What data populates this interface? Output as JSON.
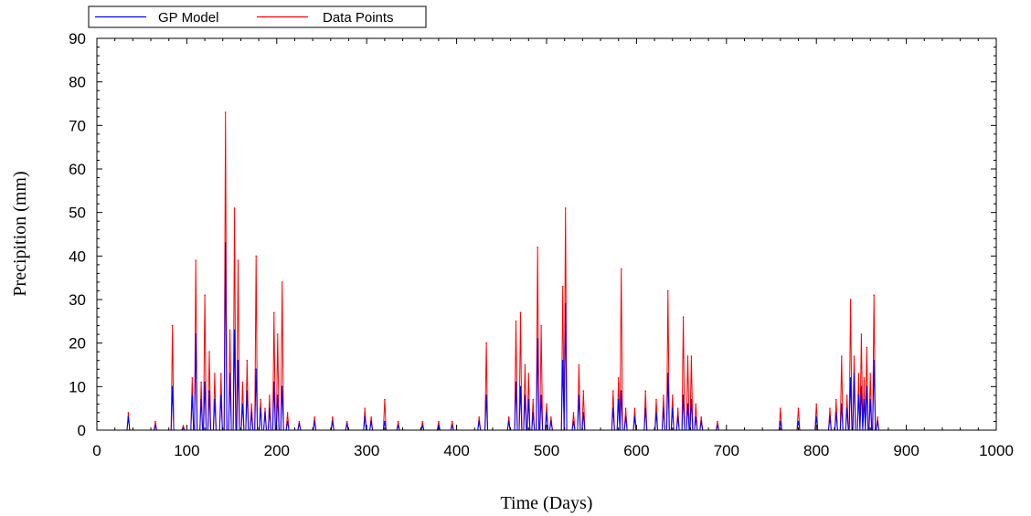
{
  "chart_data": {
    "type": "line",
    "title": "",
    "xlabel": "Time (Days)",
    "ylabel": "Precipition (mm)",
    "xlim": [
      0,
      1000
    ],
    "ylim": [
      0,
      90
    ],
    "xticks": [
      "0",
      "100",
      "200",
      "300",
      "400",
      "500",
      "600",
      "700",
      "800",
      "900",
      "1000"
    ],
    "yticks": [
      "0",
      "10",
      "20",
      "30",
      "40",
      "50",
      "60",
      "70",
      "80",
      "90"
    ],
    "grid": false,
    "legend": {
      "placement": "top-left",
      "entries": [
        {
          "label": "GP Model",
          "color": "#0000ff"
        },
        {
          "label": "Data Points",
          "color": "#ff0000"
        }
      ]
    },
    "series": [
      {
        "name": "Data Points",
        "color": "#ff0000",
        "peaks": [
          [
            35,
            4
          ],
          [
            65,
            2
          ],
          [
            84,
            24
          ],
          [
            96,
            1
          ],
          [
            106,
            12
          ],
          [
            110,
            39
          ],
          [
            116,
            11
          ],
          [
            120,
            31
          ],
          [
            125,
            18
          ],
          [
            131,
            13
          ],
          [
            138,
            13
          ],
          [
            143,
            73
          ],
          [
            148,
            23
          ],
          [
            153,
            51
          ],
          [
            157,
            39
          ],
          [
            162,
            11
          ],
          [
            167,
            16
          ],
          [
            172,
            6
          ],
          [
            177,
            40
          ],
          [
            182,
            7
          ],
          [
            187,
            5
          ],
          [
            192,
            8
          ],
          [
            197,
            27
          ],
          [
            201,
            22
          ],
          [
            206,
            34
          ],
          [
            212,
            4
          ],
          [
            225,
            2
          ],
          [
            242,
            3
          ],
          [
            262,
            3
          ],
          [
            278,
            2
          ],
          [
            298,
            5
          ],
          [
            305,
            3
          ],
          [
            320,
            7
          ],
          [
            335,
            2
          ],
          [
            362,
            2
          ],
          [
            380,
            2
          ],
          [
            395,
            2
          ],
          [
            425,
            3
          ],
          [
            433,
            20
          ],
          [
            458,
            3
          ],
          [
            466,
            25
          ],
          [
            471,
            27
          ],
          [
            476,
            15
          ],
          [
            480,
            13
          ],
          [
            485,
            7
          ],
          [
            490,
            42
          ],
          [
            494,
            24
          ],
          [
            500,
            6
          ],
          [
            505,
            3
          ],
          [
            518,
            33
          ],
          [
            521,
            51
          ],
          [
            530,
            4
          ],
          [
            536,
            15
          ],
          [
            541,
            9
          ],
          [
            574,
            9
          ],
          [
            580,
            12
          ],
          [
            583,
            37
          ],
          [
            588,
            5
          ],
          [
            598,
            5
          ],
          [
            610,
            9
          ],
          [
            622,
            7
          ],
          [
            630,
            8
          ],
          [
            635,
            32
          ],
          [
            640,
            8
          ],
          [
            646,
            5
          ],
          [
            652,
            26
          ],
          [
            657,
            17
          ],
          [
            661,
            17
          ],
          [
            666,
            6
          ],
          [
            672,
            3
          ],
          [
            690,
            2
          ],
          [
            760,
            5
          ],
          [
            780,
            5
          ],
          [
            800,
            6
          ],
          [
            815,
            5
          ],
          [
            822,
            7
          ],
          [
            828,
            17
          ],
          [
            834,
            8
          ],
          [
            838,
            30
          ],
          [
            842,
            17
          ],
          [
            847,
            13
          ],
          [
            850,
            22
          ],
          [
            853,
            12
          ],
          [
            856,
            19
          ],
          [
            860,
            13
          ],
          [
            864,
            31
          ],
          [
            868,
            3
          ]
        ]
      },
      {
        "name": "GP Model",
        "color": "#0000ff",
        "peaks": [
          [
            35,
            3
          ],
          [
            65,
            1
          ],
          [
            84,
            10
          ],
          [
            96,
            0.5
          ],
          [
            106,
            8
          ],
          [
            110,
            22
          ],
          [
            116,
            7
          ],
          [
            120,
            11
          ],
          [
            125,
            9
          ],
          [
            131,
            7
          ],
          [
            138,
            8
          ],
          [
            143,
            43
          ],
          [
            148,
            13
          ],
          [
            153,
            23
          ],
          [
            157,
            16
          ],
          [
            162,
            6
          ],
          [
            167,
            9
          ],
          [
            172,
            4
          ],
          [
            177,
            14
          ],
          [
            182,
            5
          ],
          [
            187,
            4
          ],
          [
            192,
            5
          ],
          [
            197,
            11
          ],
          [
            201,
            8
          ],
          [
            206,
            10
          ],
          [
            212,
            2
          ],
          [
            225,
            1.5
          ],
          [
            242,
            2
          ],
          [
            262,
            2
          ],
          [
            278,
            1.5
          ],
          [
            298,
            3
          ],
          [
            305,
            2
          ],
          [
            320,
            2
          ],
          [
            335,
            1
          ],
          [
            362,
            1
          ],
          [
            380,
            1
          ],
          [
            395,
            1
          ],
          [
            425,
            2
          ],
          [
            433,
            8
          ],
          [
            458,
            2
          ],
          [
            466,
            11
          ],
          [
            471,
            10
          ],
          [
            476,
            8
          ],
          [
            480,
            7
          ],
          [
            485,
            4
          ],
          [
            490,
            21
          ],
          [
            494,
            8
          ],
          [
            500,
            4
          ],
          [
            505,
            2
          ],
          [
            518,
            16
          ],
          [
            521,
            29
          ],
          [
            530,
            2
          ],
          [
            536,
            8
          ],
          [
            541,
            4
          ],
          [
            574,
            5
          ],
          [
            580,
            7
          ],
          [
            583,
            9
          ],
          [
            588,
            3
          ],
          [
            598,
            3
          ],
          [
            610,
            5
          ],
          [
            622,
            4
          ],
          [
            630,
            5
          ],
          [
            635,
            13
          ],
          [
            640,
            5
          ],
          [
            646,
            3
          ],
          [
            652,
            8
          ],
          [
            657,
            6
          ],
          [
            661,
            7
          ],
          [
            666,
            3
          ],
          [
            672,
            2
          ],
          [
            690,
            1
          ],
          [
            760,
            2
          ],
          [
            780,
            2
          ],
          [
            800,
            3
          ],
          [
            815,
            3
          ],
          [
            822,
            4
          ],
          [
            828,
            6
          ],
          [
            834,
            5
          ],
          [
            838,
            12
          ],
          [
            842,
            13
          ],
          [
            847,
            8
          ],
          [
            850,
            10
          ],
          [
            853,
            7
          ],
          [
            856,
            10
          ],
          [
            860,
            7
          ],
          [
            864,
            16
          ],
          [
            868,
            2
          ]
        ]
      }
    ]
  }
}
